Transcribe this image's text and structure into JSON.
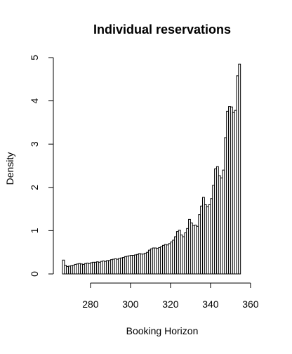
{
  "chart_data": {
    "type": "bar",
    "title": "Individual reservations",
    "xlabel": "Booking Horizon",
    "ylabel": "Density",
    "xlim": [
      266,
      366
    ],
    "ylim": [
      0,
      5
    ],
    "x_ticks": [
      "280",
      "300",
      "320",
      "340",
      "360"
    ],
    "y_ticks": [
      "0",
      "1",
      "2",
      "3",
      "4",
      "5"
    ],
    "bin_width": 1,
    "bin_start": 266,
    "grid": false,
    "legend": "none",
    "densities": [
      0.32,
      0.2,
      0.17,
      0.18,
      0.19,
      0.2,
      0.22,
      0.23,
      0.24,
      0.23,
      0.22,
      0.24,
      0.25,
      0.24,
      0.26,
      0.27,
      0.27,
      0.28,
      0.27,
      0.29,
      0.3,
      0.29,
      0.31,
      0.31,
      0.33,
      0.34,
      0.35,
      0.34,
      0.36,
      0.37,
      0.38,
      0.4,
      0.41,
      0.42,
      0.43,
      0.43,
      0.44,
      0.45,
      0.47,
      0.46,
      0.46,
      0.48,
      0.5,
      0.55,
      0.58,
      0.6,
      0.6,
      0.59,
      0.61,
      0.63,
      0.66,
      0.68,
      0.67,
      0.7,
      0.74,
      0.78,
      0.86,
      0.98,
      1.01,
      0.9,
      0.86,
      0.95,
      1.05,
      1.26,
      1.18,
      1.12,
      1.13,
      1.1,
      1.37,
      1.57,
      1.77,
      1.6,
      1.55,
      1.6,
      1.74,
      2.05,
      2.43,
      2.48,
      2.27,
      2.22,
      2.4,
      3.15,
      3.76,
      3.87,
      3.86,
      3.73,
      3.78,
      4.58,
      4.85
    ]
  }
}
